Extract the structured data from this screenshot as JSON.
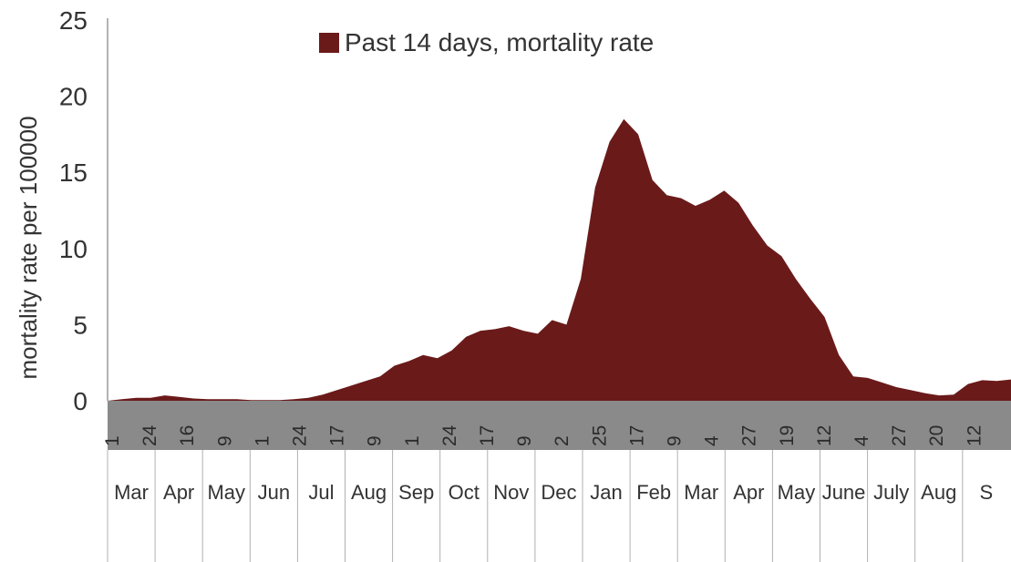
{
  "chart_data": {
    "type": "area",
    "ylabel": "mortality rate per 100000",
    "ylim": [
      0,
      25
    ],
    "yticks": [
      0,
      5,
      10,
      15,
      20,
      25
    ],
    "legend": {
      "position": "top-center"
    },
    "series": [
      {
        "name": "Past 14 days, mortality rate",
        "color": "#6b1a1a",
        "points": [
          [
            0,
            0
          ],
          [
            1,
            0.1
          ],
          [
            2,
            0.2
          ],
          [
            3,
            0.2
          ],
          [
            4,
            0.35
          ],
          [
            5,
            0.25
          ],
          [
            6,
            0.15
          ],
          [
            7,
            0.1
          ],
          [
            8,
            0.1
          ],
          [
            9,
            0.1
          ],
          [
            10,
            0.05
          ],
          [
            11,
            0.05
          ],
          [
            12,
            0.05
          ],
          [
            13,
            0.1
          ],
          [
            14,
            0.2
          ],
          [
            15,
            0.4
          ],
          [
            16,
            0.7
          ],
          [
            17,
            1.0
          ],
          [
            18,
            1.3
          ],
          [
            19,
            1.6
          ],
          [
            20,
            2.3
          ],
          [
            21,
            2.6
          ],
          [
            22,
            3.0
          ],
          [
            23,
            2.8
          ],
          [
            24,
            3.3
          ],
          [
            25,
            4.2
          ],
          [
            26,
            4.6
          ],
          [
            27,
            4.7
          ],
          [
            28,
            4.9
          ],
          [
            29,
            4.6
          ],
          [
            30,
            4.4
          ],
          [
            31,
            5.3
          ],
          [
            32,
            5.0
          ],
          [
            33,
            8.0
          ],
          [
            34,
            14.0
          ],
          [
            35,
            17.0
          ],
          [
            36,
            18.5
          ],
          [
            37,
            17.5
          ],
          [
            38,
            14.5
          ],
          [
            39,
            13.5
          ],
          [
            40,
            13.3
          ],
          [
            41,
            12.8
          ],
          [
            42,
            13.2
          ],
          [
            43,
            13.8
          ],
          [
            44,
            13.0
          ],
          [
            45,
            11.5
          ],
          [
            46,
            10.2
          ],
          [
            47,
            9.5
          ],
          [
            48,
            8.0
          ],
          [
            49,
            6.7
          ],
          [
            50,
            5.5
          ],
          [
            51,
            3.0
          ],
          [
            52,
            1.6
          ],
          [
            53,
            1.5
          ],
          [
            54,
            1.2
          ],
          [
            55,
            0.9
          ],
          [
            56,
            0.7
          ],
          [
            57,
            0.5
          ],
          [
            58,
            0.35
          ],
          [
            59,
            0.4
          ],
          [
            60,
            1.1
          ],
          [
            61,
            1.35
          ],
          [
            62,
            1.3
          ],
          [
            63,
            1.4
          ]
        ]
      }
    ],
    "date_ticks": [
      "1",
      "24",
      "16",
      "9",
      "1",
      "24",
      "17",
      "9",
      "1",
      "24",
      "17",
      "9",
      "2",
      "25",
      "17",
      "9",
      "4",
      "27",
      "19",
      "12",
      "4",
      "27",
      "20",
      "12"
    ],
    "months": [
      "Mar",
      "Apr",
      "May",
      "Jun",
      "Jul",
      "Aug",
      "Sep",
      "Oct",
      "Nov",
      "Dec",
      "Jan",
      "Feb",
      "Mar",
      "Apr",
      "May",
      "June",
      "July",
      "Aug",
      "S"
    ]
  }
}
